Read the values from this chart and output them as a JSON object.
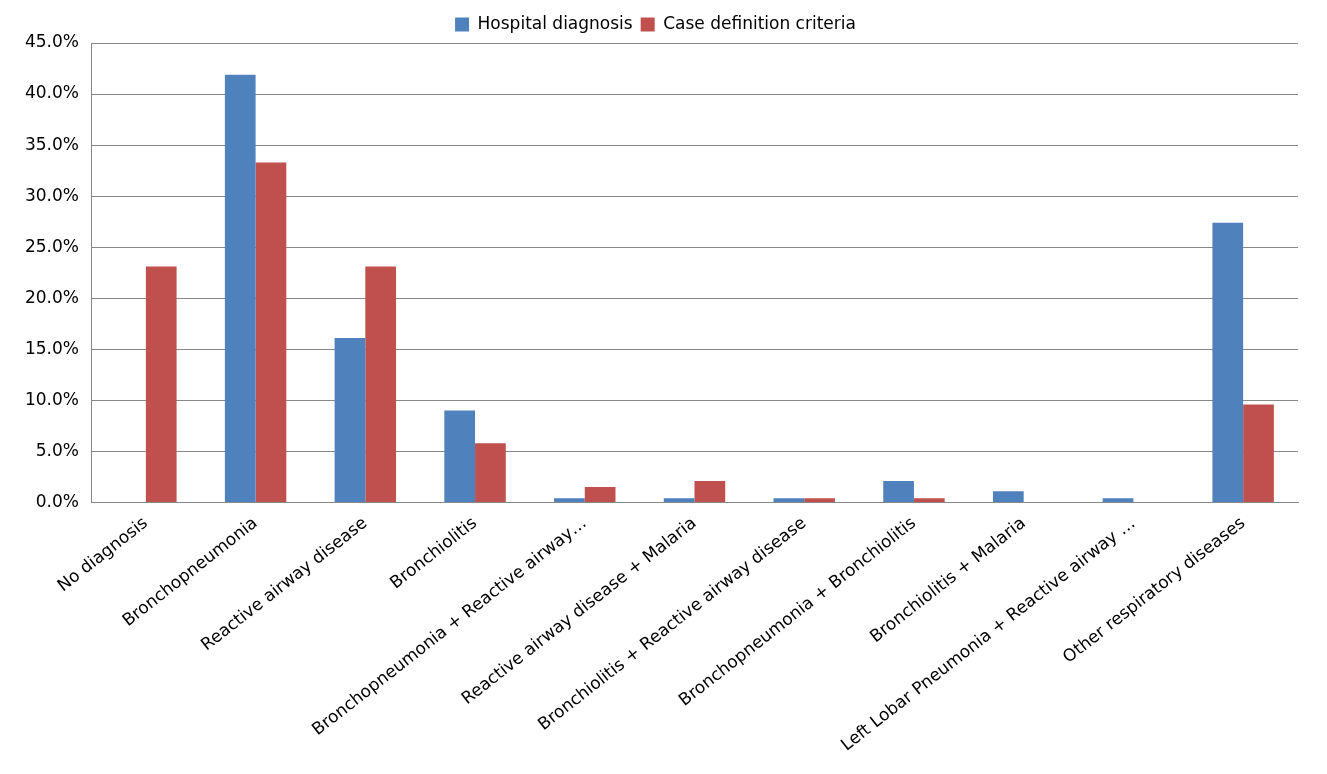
{
  "chart_data": {
    "type": "bar",
    "categories": [
      "No diagnosis",
      "Bronchopneumonia",
      "Reactive airway disease",
      "Bronchiolitis",
      "Bronchopneumonia + Reactive airway…",
      "Reactive airway disease + Malaria",
      "Bronchiolitis + Reactive airway disease",
      "Bronchopneumonia + Bronchiolitis",
      "Bronchiolitis + Malaria",
      "Left Lobar Pneumonia + Reactive airway …",
      "Other respiratory diseases"
    ],
    "series": [
      {
        "name": "Hospital diagnosis",
        "color": "#4f81bd",
        "values": [
          0,
          41.9,
          16.1,
          9.0,
          0.4,
          0.4,
          0.4,
          2.1,
          1.1,
          0.4,
          27.4
        ]
      },
      {
        "name": "Case definition criteria",
        "color": "#c0504d",
        "values": [
          23.1,
          33.3,
          23.1,
          5.8,
          1.5,
          2.1,
          0.4,
          0.4,
          0,
          0,
          9.6
        ]
      }
    ],
    "ylim": [
      0,
      45
    ],
    "yticks": [
      {
        "value": 0,
        "label": "0.0%"
      },
      {
        "value": 5,
        "label": "5.0%"
      },
      {
        "value": 10,
        "label": "10.0%"
      },
      {
        "value": 15,
        "label": "15.0%"
      },
      {
        "value": 20,
        "label": "20.0%"
      },
      {
        "value": 25,
        "label": "25.0%"
      },
      {
        "value": 30,
        "label": "30.0%"
      },
      {
        "value": 35,
        "label": "35.0%"
      },
      {
        "value": 40,
        "label": "40.0%"
      },
      {
        "value": 45,
        "label": "45.0%"
      }
    ],
    "grid": "y",
    "legend": "top"
  }
}
